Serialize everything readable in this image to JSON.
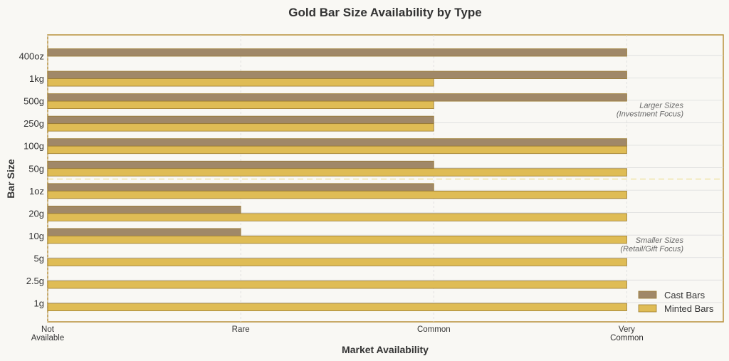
{
  "chart_data": {
    "type": "bar",
    "orientation": "horizontal",
    "title": "Gold Bar Size Availability by Type",
    "xlabel": "Market Availability",
    "ylabel": "Bar Size",
    "categories": [
      "400oz",
      "1kg",
      "500g",
      "250g",
      "100g",
      "50g",
      "1oz",
      "20g",
      "10g",
      "5g",
      "2.5g",
      "1g"
    ],
    "x_ticks": [
      {
        "value": 0,
        "lines": [
          "Not",
          "Available"
        ]
      },
      {
        "value": 1,
        "lines": [
          "Rare"
        ]
      },
      {
        "value": 2,
        "lines": [
          "Common"
        ]
      },
      {
        "value": 3,
        "lines": [
          "Very",
          "Common"
        ]
      }
    ],
    "xlim": [
      0,
      3.5
    ],
    "series": [
      {
        "name": "Cast Bars",
        "color": "#a08868",
        "values": [
          3,
          3,
          3,
          2,
          3,
          2,
          2,
          1,
          1,
          0,
          0,
          0
        ]
      },
      {
        "name": "Minted Bars",
        "color": "#dfbc55",
        "values": [
          0,
          2,
          2,
          2,
          3,
          3,
          3,
          3,
          3,
          3,
          3,
          3
        ]
      }
    ],
    "annotations": [
      {
        "lines": [
          "Larger Sizes",
          "(Investment Focus)"
        ],
        "near": "250g"
      },
      {
        "lines": [
          "Smaller Sizes",
          "(Retail/Gift Focus)"
        ],
        "near": "5g"
      }
    ],
    "divider_between": [
      "50g",
      "1oz"
    ],
    "grid": true,
    "legend_position": "lower-right",
    "colors": {
      "frame": "#b8903a",
      "grid": "#dcdcdc",
      "bar_edge": "#9a7a30",
      "divider": "#f0e4a8",
      "background": "#f9f8f4"
    }
  }
}
